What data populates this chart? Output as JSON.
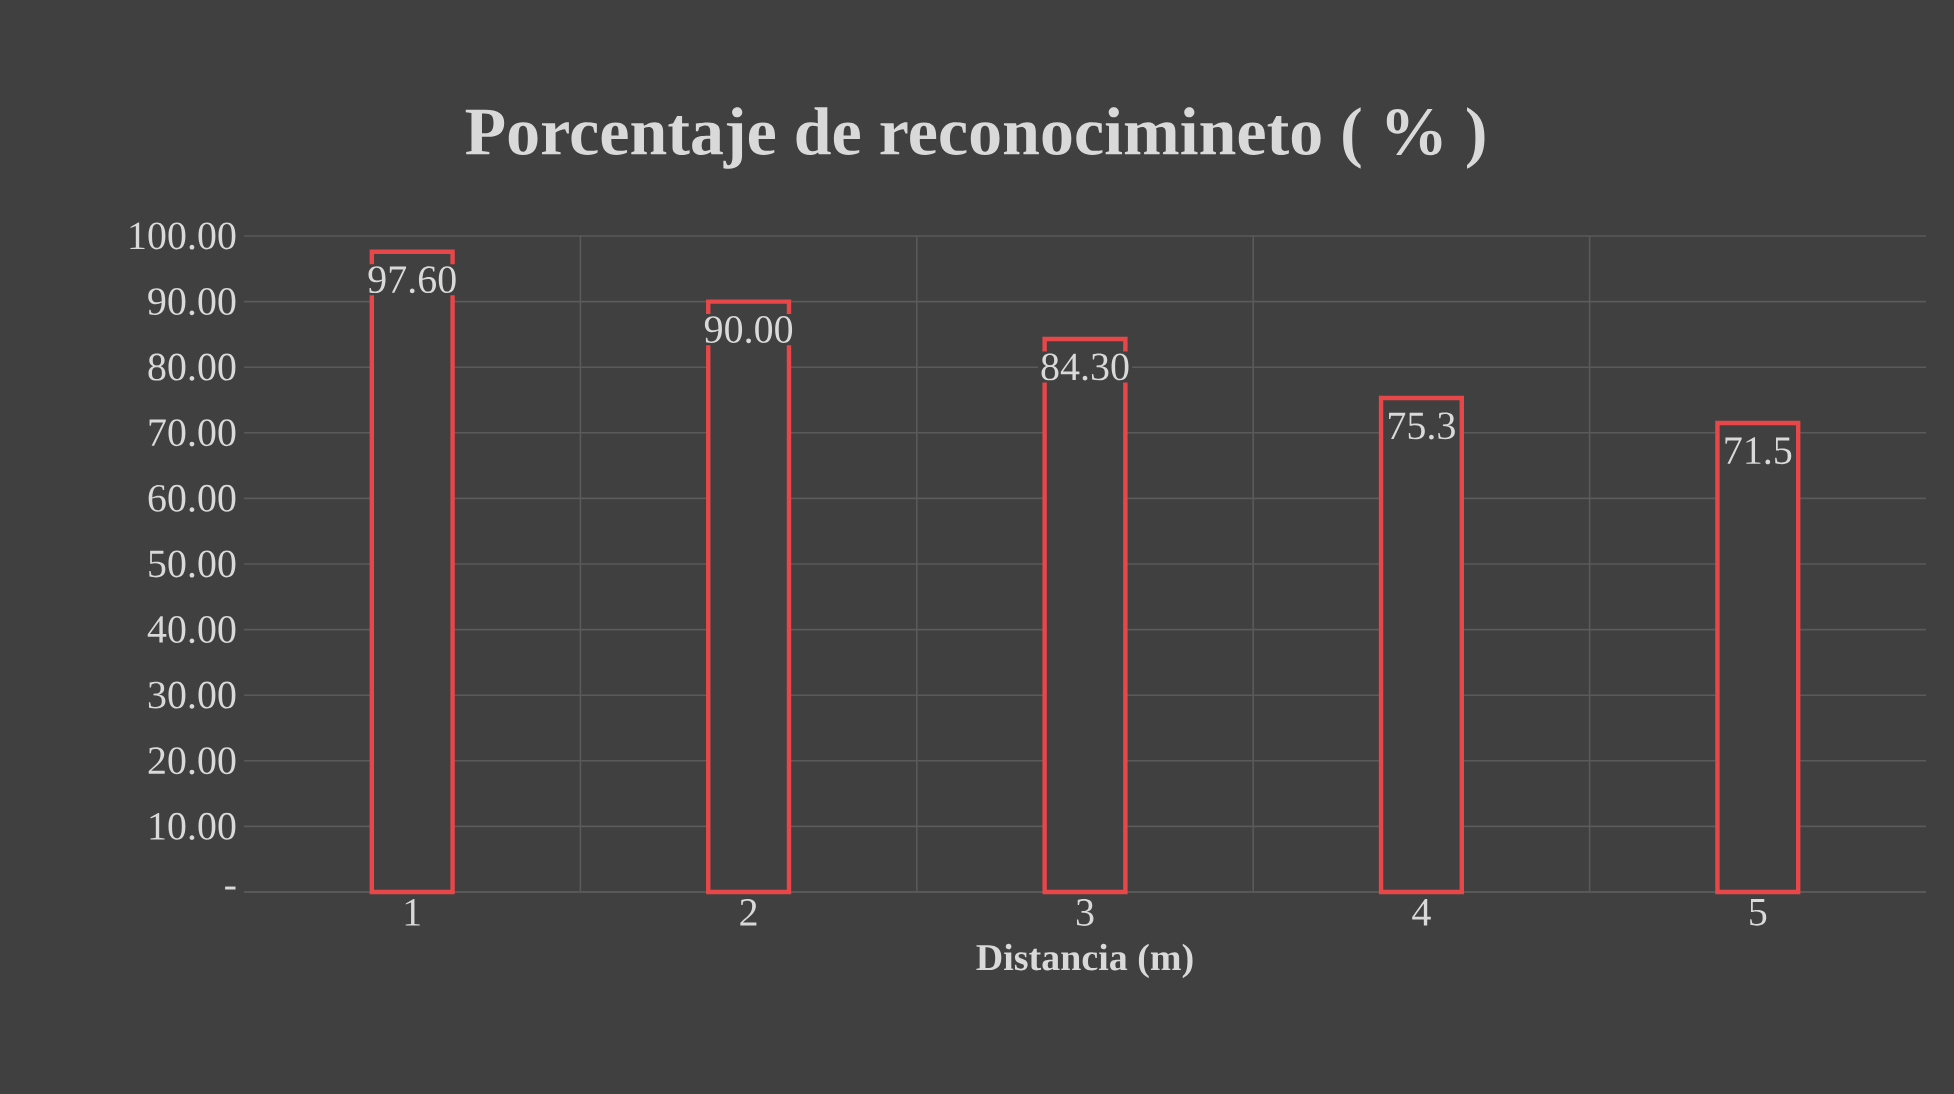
{
  "chart_data": {
    "type": "bar",
    "title": "Porcentaje de reconocimineto ( % )",
    "xlabel": "Distancia (m)",
    "categories": [
      "1",
      "2",
      "3",
      "4",
      "5"
    ],
    "values": [
      97.6,
      90.0,
      84.3,
      75.3,
      71.5
    ],
    "value_labels": [
      "97.60",
      "90.00",
      "84.30",
      "75.3",
      "71.5"
    ],
    "color": "#e8474a",
    "ylim": [
      0,
      100
    ],
    "yticks": [
      {
        "value": 0,
        "label": "-"
      },
      {
        "value": 10,
        "label": "10.00"
      },
      {
        "value": 20,
        "label": "20.00"
      },
      {
        "value": 30,
        "label": "30.00"
      },
      {
        "value": 40,
        "label": "40.00"
      },
      {
        "value": 50,
        "label": "50.00"
      },
      {
        "value": 60,
        "label": "60.00"
      },
      {
        "value": 70,
        "label": "70.00"
      },
      {
        "value": 80,
        "label": "80.00"
      },
      {
        "value": 90,
        "label": "90.00"
      },
      {
        "value": 100,
        "label": "100.00"
      }
    ],
    "grid": true
  }
}
